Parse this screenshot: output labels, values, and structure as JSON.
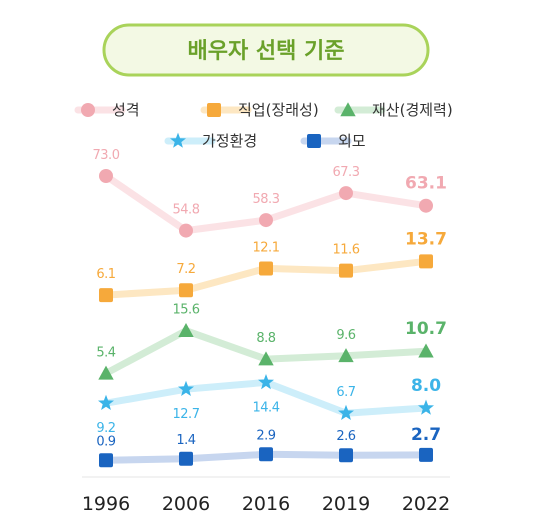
{
  "title": "배우자 선택 기준",
  "chart_data": {
    "type": "line",
    "x": [
      "1996",
      "2006",
      "2016",
      "2019",
      "2022"
    ],
    "ylim": [
      0,
      80
    ],
    "legend_position": "top",
    "series": [
      {
        "name": "성격",
        "marker": "circle",
        "color": "#f1a9b1",
        "line_color": "#fbe2e5",
        "values": [
          73.0,
          54.8,
          58.3,
          67.3,
          63.1
        ],
        "labels": [
          "73.0",
          "54.8",
          "58.3",
          "67.3",
          "63.1"
        ],
        "label_pos": "above"
      },
      {
        "name": "직업(장래성)",
        "marker": "square",
        "color": "#f6a93b",
        "line_color": "#fde7c2",
        "values": [
          6.1,
          7.2,
          12.1,
          11.6,
          13.7
        ],
        "labels": [
          "6.1",
          "7.2",
          "12.1",
          "11.6",
          "13.7"
        ],
        "label_pos": "above"
      },
      {
        "name": "재산(경제력)",
        "marker": "triangle",
        "color": "#5ab36a",
        "line_color": "#d3ecd6",
        "values": [
          5.4,
          15.6,
          8.8,
          9.6,
          10.7
        ],
        "labels": [
          "5.4",
          "15.6",
          "8.8",
          "9.6",
          "10.7"
        ],
        "label_pos": "above"
      },
      {
        "name": "가정환경",
        "marker": "star",
        "color": "#3bb4e8",
        "line_color": "#cdeefa",
        "values": [
          9.2,
          12.7,
          14.4,
          6.7,
          8.0
        ],
        "labels": [
          "9.2",
          "12.7",
          "14.4",
          "6.7",
          "8.0"
        ],
        "label_pos": "mixed"
      },
      {
        "name": "외모",
        "marker": "square",
        "color": "#1a64c0",
        "line_color": "#c7d6ef",
        "values": [
          0.9,
          1.4,
          2.9,
          2.6,
          2.7
        ],
        "labels": [
          "0.9",
          "1.4",
          "2.9",
          "2.6",
          "2.7"
        ],
        "label_pos": "above"
      }
    ]
  }
}
